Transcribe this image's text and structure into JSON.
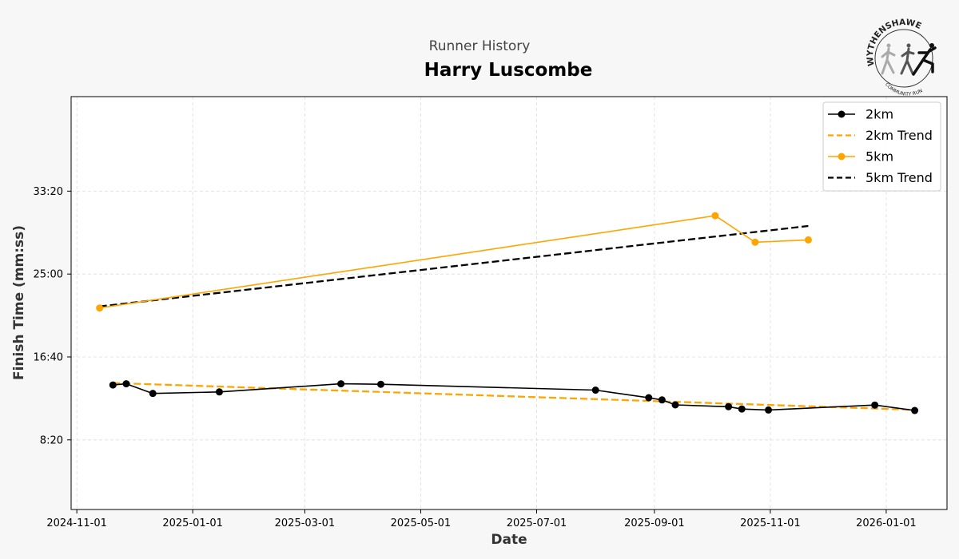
{
  "chart_data": {
    "type": "line",
    "subtitle": "Runner History",
    "title": "Harry Luscombe",
    "xlabel": "Date",
    "ylabel": "Finish Time (mm:ss)",
    "x_ticks": [
      "2024-11-01",
      "2025-01-01",
      "2025-03-01",
      "2025-05-01",
      "2025-07-01",
      "2025-09-01",
      "2025-11-01",
      "2026-01-01"
    ],
    "y_ticks": [
      {
        "seconds": 500,
        "label": "8:20"
      },
      {
        "seconds": 1000,
        "label": "16:40"
      },
      {
        "seconds": 1500,
        "label": "25:00"
      },
      {
        "seconds": 2000,
        "label": "33:20"
      }
    ],
    "xlim": [
      "2024-10-29",
      "2026-02-02"
    ],
    "ylim_seconds": [
      80,
      2570
    ],
    "grid": true,
    "legend_position": "top-right",
    "series": [
      {
        "name": "2km",
        "style": "solid-markers",
        "color": "#000000",
        "x": [
          "2024-11-20",
          "2024-11-27",
          "2024-12-11",
          "2025-01-15",
          "2025-03-20",
          "2025-04-10",
          "2025-08-01",
          "2025-08-29",
          "2025-09-05",
          "2025-09-12",
          "2025-10-10",
          "2025-10-17",
          "2025-10-31",
          "2025-12-26",
          "2026-01-16"
        ],
        "y_seconds": [
          831,
          838,
          780,
          789,
          838,
          835,
          800,
          754,
          741,
          711,
          700,
          686,
          680,
          710,
          677
        ]
      },
      {
        "name": "2km Trend",
        "style": "dashed",
        "color": "#FFA500",
        "x": [
          "2024-11-20",
          "2026-01-16"
        ],
        "y_seconds": [
          843,
          681
        ]
      },
      {
        "name": "5km",
        "style": "solid-markers",
        "color": "#FFA500",
        "x": [
          "2024-11-13",
          "2025-10-03",
          "2025-10-24",
          "2025-11-21"
        ],
        "y_seconds": [
          1295,
          1852,
          1692,
          1706
        ]
      },
      {
        "name": "5km Trend",
        "style": "dashed",
        "color": "#000000",
        "x": [
          "2024-11-13",
          "2025-11-21"
        ],
        "y_seconds": [
          1305,
          1790
        ]
      }
    ]
  },
  "logo": {
    "text_top": "WYTHENSHAWE",
    "text_bottom": "COMMUNITY RUN"
  }
}
